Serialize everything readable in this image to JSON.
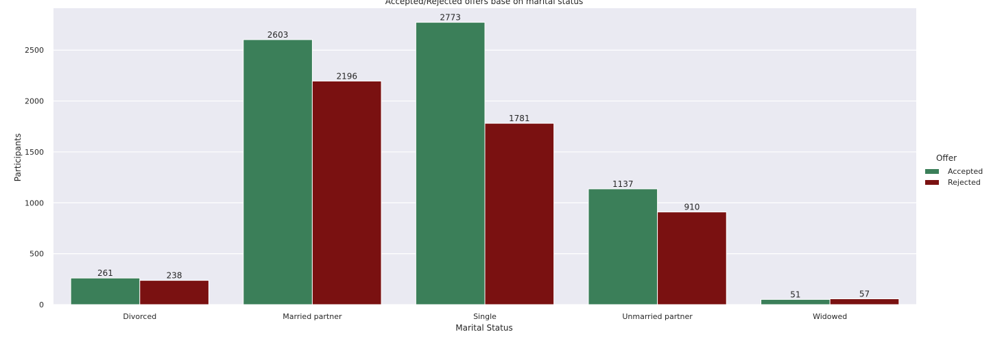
{
  "chart_data": {
    "type": "bar",
    "title": "Accepted/Rejected offers base on marital status",
    "xlabel": "Marital Status",
    "ylabel": "Participants",
    "categories": [
      "Divorced",
      "Married partner",
      "Single",
      "Unmarried partner",
      "Widowed"
    ],
    "series": [
      {
        "name": "Accepted",
        "color": "#3b7f59",
        "values": [
          261,
          2603,
          2773,
          1137,
          51
        ]
      },
      {
        "name": "Rejected",
        "color": "#7a1111",
        "values": [
          238,
          2196,
          1781,
          910,
          57
        ]
      }
    ],
    "yticks": [
      0,
      500,
      1000,
      1500,
      2000,
      2500
    ],
    "ylim": [
      0,
      2911.65
    ],
    "grid": true,
    "background": "#eaeaf2",
    "legend": {
      "title": "Offer",
      "placement": "right"
    }
  }
}
